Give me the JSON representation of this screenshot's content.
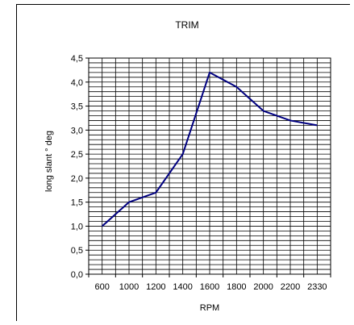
{
  "chart_data": {
    "type": "line",
    "title": "TRIM",
    "xlabel": "RPM",
    "ylabel": "long slant ° deg",
    "categories": [
      "600",
      "1000",
      "1200",
      "1400",
      "1600",
      "1800",
      "2000",
      "2200",
      "2330"
    ],
    "y_ticks": [
      "0,0",
      "0,5",
      "1,0",
      "1,5",
      "2,0",
      "2,5",
      "3,0",
      "3,5",
      "4,0",
      "4,5"
    ],
    "ylim": [
      0,
      4.5
    ],
    "grid": true,
    "legend": "none",
    "series": [
      {
        "values": [
          1.0,
          1.5,
          1.7,
          2.5,
          4.2,
          3.9,
          3.4,
          3.2,
          3.1
        ],
        "color": "#000080"
      }
    ]
  }
}
